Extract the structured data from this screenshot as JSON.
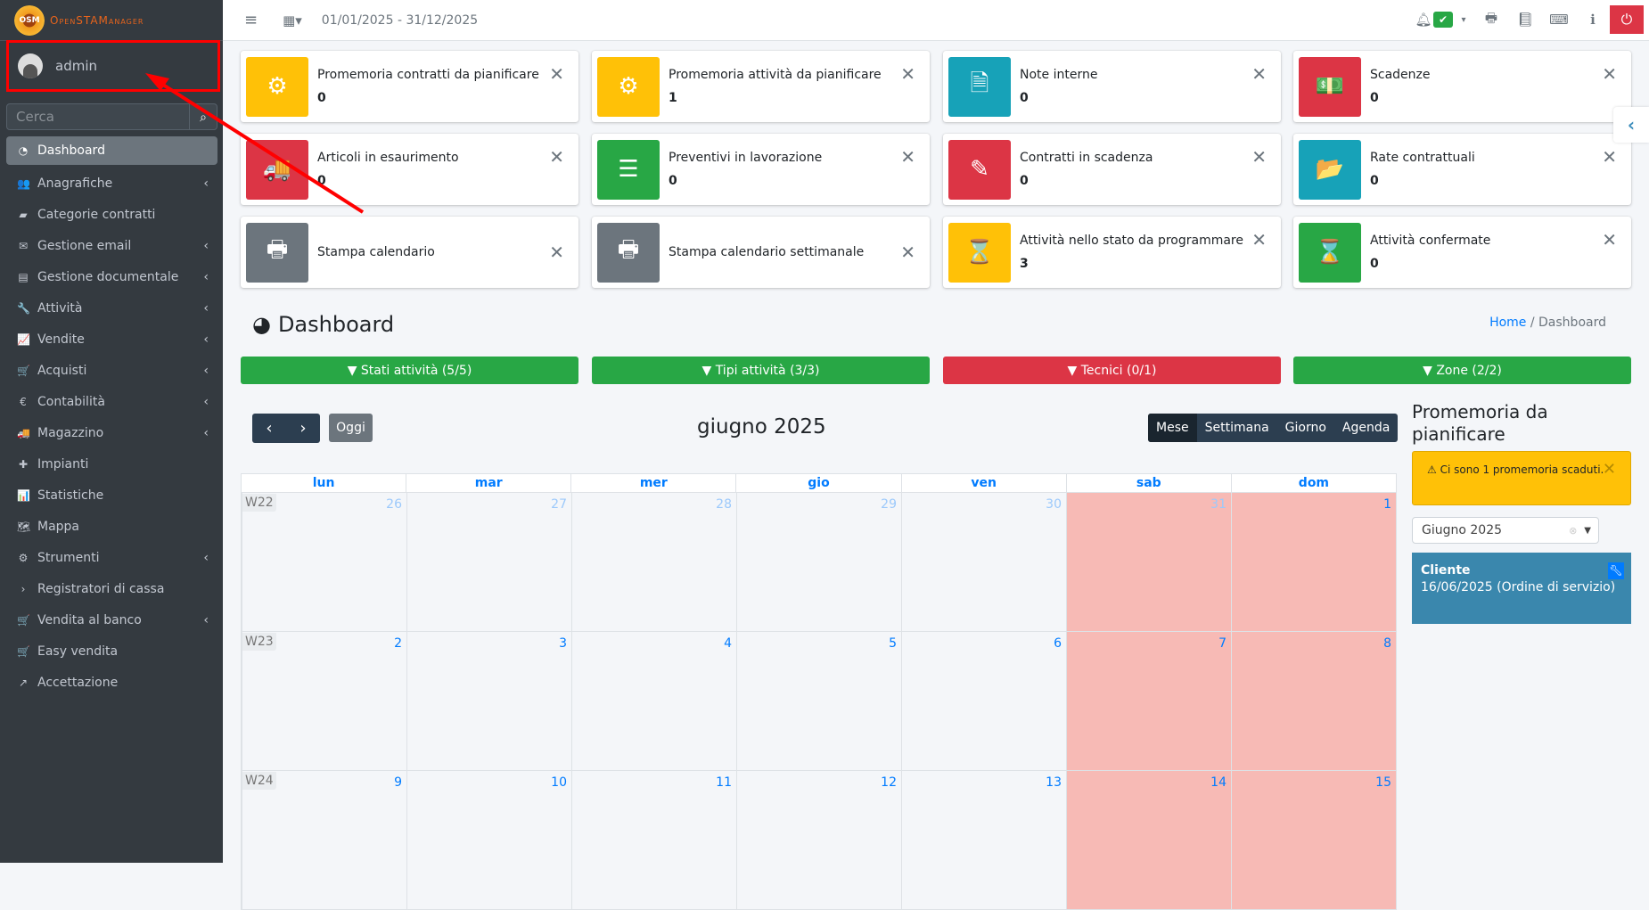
{
  "app": {
    "logo_text": "OpenSTAManager",
    "logo_badge": "OSM"
  },
  "user": {
    "name": "admin"
  },
  "search": {
    "placeholder": "Cerca"
  },
  "sidebar": {
    "items": [
      {
        "label": "Dashboard",
        "icon": "dashboard-icon",
        "glyph": "◔",
        "active": true,
        "chevron": false
      },
      {
        "label": "Anagrafiche",
        "icon": "users-icon",
        "glyph": "👥",
        "chevron": true
      },
      {
        "label": "Categorie contratti",
        "icon": "briefcase-icon",
        "glyph": "▰",
        "chevron": false
      },
      {
        "label": "Gestione email",
        "icon": "envelope-icon",
        "glyph": "✉",
        "chevron": true
      },
      {
        "label": "Gestione documentale",
        "icon": "file-icon",
        "glyph": "▤",
        "chevron": true
      },
      {
        "label": "Attività",
        "icon": "wrench-icon",
        "glyph": "🔧",
        "chevron": true
      },
      {
        "label": "Vendite",
        "icon": "chart-line-icon",
        "glyph": "📈",
        "chevron": true
      },
      {
        "label": "Acquisti",
        "icon": "cart-icon",
        "glyph": "🛒",
        "chevron": true
      },
      {
        "label": "Contabilità",
        "icon": "euro-icon",
        "glyph": "€",
        "chevron": true
      },
      {
        "label": "Magazzino",
        "icon": "truck-icon",
        "glyph": "🚚",
        "chevron": true
      },
      {
        "label": "Impianti",
        "icon": "puzzle-icon",
        "glyph": "✚",
        "chevron": false
      },
      {
        "label": "Statistiche",
        "icon": "bar-chart-icon",
        "glyph": "📊",
        "chevron": false
      },
      {
        "label": "Mappa",
        "icon": "map-icon",
        "glyph": "🗺",
        "chevron": false
      },
      {
        "label": "Strumenti",
        "icon": "gear-icon",
        "glyph": "⚙",
        "chevron": true
      },
      {
        "label": "Registratori di cassa",
        "icon": "chevron-right-icon",
        "glyph": "›",
        "chevron": false
      },
      {
        "label": "Vendita al banco",
        "icon": "cart-icon",
        "glyph": "🛒",
        "chevron": true
      },
      {
        "label": "Easy vendita",
        "icon": "cart-icon",
        "glyph": "🛒",
        "chevron": false
      },
      {
        "label": "Accettazione",
        "icon": "external-link-icon",
        "glyph": "↗",
        "chevron": false
      }
    ]
  },
  "topbar": {
    "date_range": "01/01/2025 - 31/12/2025"
  },
  "cards": [
    {
      "title": "Promemoria contratti da pianificare",
      "value": "0",
      "color": "#ffc107",
      "icon": "gear-icon",
      "glyph": "⚙"
    },
    {
      "title": "Promemoria attività da pianificare",
      "value": "1",
      "color": "#ffc107",
      "icon": "gears-icon",
      "glyph": "⚙"
    },
    {
      "title": "Note interne",
      "value": "0",
      "color": "#17a2b8",
      "icon": "file-text-icon",
      "glyph": "🗎"
    },
    {
      "title": "Scadenze",
      "value": "0",
      "color": "#dc3545",
      "icon": "money-icon",
      "glyph": "💵"
    },
    {
      "title": "Articoli in esaurimento",
      "value": "0",
      "color": "#dc3545",
      "icon": "truck-icon",
      "glyph": "🚚"
    },
    {
      "title": "Preventivi in lavorazione",
      "value": "0",
      "color": "#28a745",
      "icon": "list-icon",
      "glyph": "☰"
    },
    {
      "title": "Contratti in scadenza",
      "value": "0",
      "color": "#dc3545",
      "icon": "edit-icon",
      "glyph": "✎"
    },
    {
      "title": "Rate contrattuali",
      "value": "0",
      "color": "#17a2b8",
      "icon": "folder-open-icon",
      "glyph": "📂"
    },
    {
      "title": "Stampa calendario",
      "value": "",
      "color": "#6c757d",
      "icon": "print-icon",
      "glyph": "🖶"
    },
    {
      "title": "Stampa calendario settimanale",
      "value": "",
      "color": "#6c757d",
      "icon": "print-icon",
      "glyph": "🖶"
    },
    {
      "title": "Attività nello stato da programmare",
      "value": "3",
      "color": "#ffc107",
      "icon": "hourglass-icon",
      "glyph": "⌛"
    },
    {
      "title": "Attività confermate",
      "value": "0",
      "color": "#28a745",
      "icon": "hourglass-icon",
      "glyph": "⌛"
    }
  ],
  "page": {
    "title": "Dashboard",
    "breadcrumb_home": "Home",
    "breadcrumb_current": "Dashboard"
  },
  "filters": [
    {
      "label": "Stati attività (5/5)",
      "color": "#28a745"
    },
    {
      "label": "Tipi attività (3/3)",
      "color": "#28a745"
    },
    {
      "label": "Tecnici (0/1)",
      "color": "#dc3545"
    },
    {
      "label": "Zone (2/2)",
      "color": "#28a745"
    }
  ],
  "calendar": {
    "today_label": "Oggi",
    "month_title": "giugno 2025",
    "views": [
      "Mese",
      "Settimana",
      "Giorno",
      "Agenda"
    ],
    "active_view": "Mese",
    "weekdays": [
      "lun",
      "mar",
      "mer",
      "gio",
      "ven",
      "sab",
      "dom"
    ],
    "weeks": [
      {
        "label": "W22",
        "days": [
          {
            "d": "26",
            "other": true
          },
          {
            "d": "27",
            "other": true
          },
          {
            "d": "28",
            "other": true
          },
          {
            "d": "29",
            "other": true
          },
          {
            "d": "30",
            "other": true
          },
          {
            "d": "31",
            "other": true
          },
          {
            "d": "1"
          }
        ]
      },
      {
        "label": "W23",
        "days": [
          {
            "d": "2"
          },
          {
            "d": "3"
          },
          {
            "d": "4"
          },
          {
            "d": "5"
          },
          {
            "d": "6"
          },
          {
            "d": "7"
          },
          {
            "d": "8"
          }
        ]
      },
      {
        "label": "W24",
        "days": [
          {
            "d": "9"
          },
          {
            "d": "10"
          },
          {
            "d": "11"
          },
          {
            "d": "12"
          },
          {
            "d": "13"
          },
          {
            "d": "14"
          },
          {
            "d": "15"
          }
        ]
      }
    ]
  },
  "reminders": {
    "title": "Promemoria da pianificare",
    "alert": "Ci sono 1 promemoria scaduti.",
    "month_select": "Giugno 2025",
    "event": {
      "client": "Cliente",
      "detail": "16/06/2025 (Ordine di servizio)"
    }
  }
}
